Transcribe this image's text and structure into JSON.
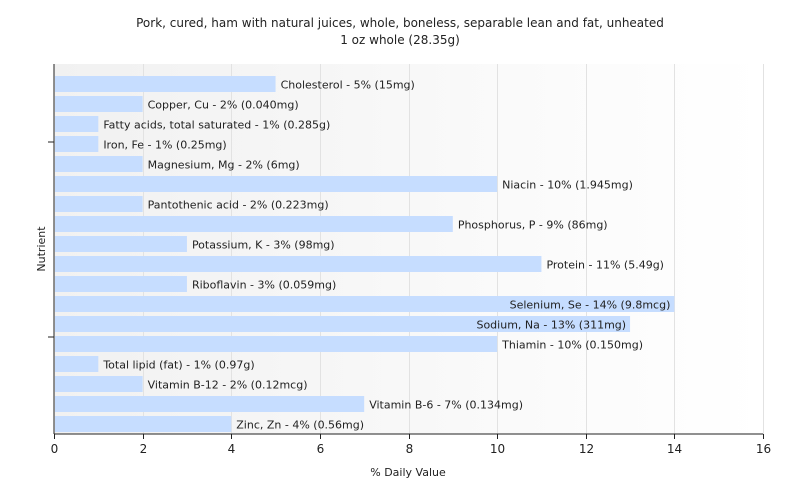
{
  "chart_data": {
    "type": "bar",
    "orientation": "horizontal",
    "title": "Pork, cured, ham with natural juices, whole, boneless, separable lean and fat, unheated",
    "subtitle": "1 oz whole (28.35g)",
    "xlabel": "% Daily Value",
    "ylabel": "Nutrient",
    "xlim": [
      0,
      16
    ],
    "xticks": [
      0,
      2,
      4,
      6,
      8,
      10,
      12,
      14,
      16
    ],
    "grid": true,
    "bar_color": "#c6ddff",
    "categories": [
      "Cholesterol",
      "Copper, Cu",
      "Fatty acids, total saturated",
      "Iron, Fe",
      "Magnesium, Mg",
      "Niacin",
      "Pantothenic acid",
      "Phosphorus, P",
      "Potassium, K",
      "Protein",
      "Riboflavin",
      "Selenium, Se",
      "Sodium, Na",
      "Thiamin",
      "Total lipid (fat)",
      "Vitamin B-12",
      "Vitamin B-6",
      "Zinc, Zn"
    ],
    "values": [
      5,
      2,
      1,
      1,
      2,
      10,
      2,
      9,
      3,
      11,
      3,
      14,
      13,
      10,
      1,
      2,
      7,
      4
    ],
    "bar_labels": [
      "Cholesterol - 5% (15mg)",
      "Copper, Cu - 2% (0.040mg)",
      "Fatty acids, total saturated - 1% (0.285g)",
      "Iron, Fe - 1% (0.25mg)",
      "Magnesium, Mg - 2% (6mg)",
      "Niacin - 10% (1.945mg)",
      "Pantothenic acid - 2% (0.223mg)",
      "Phosphorus, P - 9% (86mg)",
      "Potassium, K - 3% (98mg)",
      "Protein - 11% (5.49g)",
      "Riboflavin - 3% (0.059mg)",
      "Selenium, Se - 14% (9.8mcg)",
      "Sodium, Na - 13% (311mg)",
      "Thiamin - 10% (0.150mg)",
      "Total lipid (fat) - 1% (0.97g)",
      "Vitamin B-12 - 2% (0.12mcg)",
      "Vitamin B-6 - 7% (0.134mg)",
      "Zinc, Zn - 4% (0.56mg)"
    ]
  }
}
